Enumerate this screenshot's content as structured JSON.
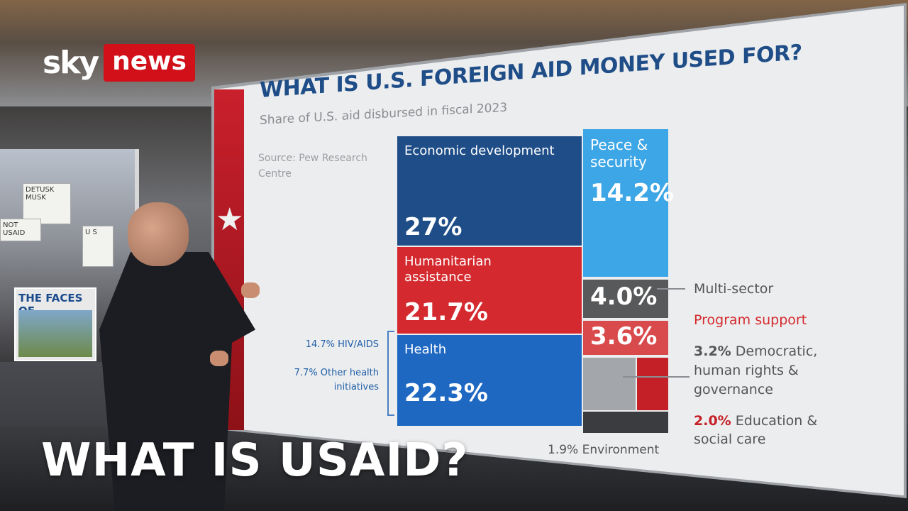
{
  "logo": {
    "sky": "sky",
    "news": "news"
  },
  "headline": "WHAT IS USAID?",
  "poster_text": "THE FACES OF",
  "signs": [
    "DETUSK MUSK",
    "NOT USAID",
    "U S"
  ],
  "chart": {
    "title": "WHAT IS U.S. FOREIGN AID MONEY USED FOR?",
    "subtitle": "Share of U.S. aid disbursed in fiscal 2023",
    "source": "Source: Pew Research Centre",
    "blocks": {
      "economic": {
        "label": "Economic development",
        "value": "27%"
      },
      "humanitarian": {
        "label": "Humanitarian assistance",
        "value": "21.7%"
      },
      "health": {
        "label": "Health",
        "value": "22.3%"
      },
      "peace": {
        "label": "Peace & security",
        "value": "14.2%"
      },
      "multisector": {
        "value": "4.0%",
        "label": "Multi-sector"
      },
      "program": {
        "value": "3.6%",
        "label": "Program support"
      },
      "democratic": {
        "value": "3.2%",
        "label": "Democratic, human rights & governance"
      },
      "education": {
        "value": "2.0%",
        "label": "Education & social care"
      },
      "environment": {
        "value": "1.9%",
        "label": "Environment"
      }
    },
    "health_breakdown": {
      "hiv": "14.7% HIV/AIDS",
      "other": "7.7% Other health initiatives"
    },
    "colors": {
      "economic": "#1e4d87",
      "humanitarian": "#d42a2f",
      "health": "#1f68c2",
      "peace": "#3da6e6",
      "multisector": "#58595b",
      "program": "#d94a4c",
      "democratic": "#a3a6aa",
      "education": "#c42028",
      "environment": "#3a3c40"
    }
  },
  "chart_data": {
    "type": "table",
    "title": "WHAT IS U.S. FOREIGN AID MONEY USED FOR?",
    "subtitle": "Share of U.S. aid disbursed in fiscal 2023",
    "categories": [
      "Economic development",
      "Humanitarian assistance",
      "Health",
      "Peace & security",
      "Multi-sector",
      "Program support",
      "Democratic, human rights & governance",
      "Education & social care",
      "Environment"
    ],
    "values": [
      27,
      21.7,
      22.3,
      14.2,
      4.0,
      3.6,
      3.2,
      2.0,
      1.9
    ],
    "sub_values": {
      "Health": {
        "HIV/AIDS": 14.7,
        "Other health initiatives": 7.7
      }
    }
  }
}
